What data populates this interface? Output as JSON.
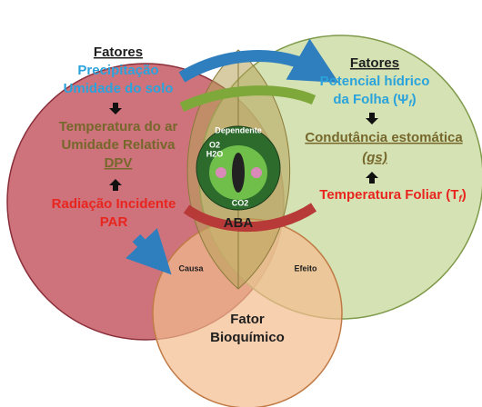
{
  "left": {
    "title": "Fatores",
    "lines": [
      "Precipitação",
      "Umidade do solo",
      "Temperatura do ar",
      "Umidade Relativa",
      "DPV",
      "Radiação Incidente",
      "PAR"
    ]
  },
  "right": {
    "title": "Fatores",
    "water_potential": "Potencial hídrico",
    "leaf": {
      "text": "da Folha (Ψ",
      "sub": "f",
      "end": ")"
    },
    "conductance": "Condutância estomática",
    "gs": "(gs)",
    "leaf_temp": {
      "text": "Temperatura Foliar (T",
      "sub": "f",
      "end": ")"
    }
  },
  "center": {
    "dependent": "Dependente",
    "aba": "ABA",
    "o2": "O2",
    "h2o": "H2O",
    "co2": "CO2",
    "cause": "Causa",
    "effect": "Efeito"
  },
  "bottom": {
    "lines": [
      "Fator",
      "Bioquímico"
    ]
  }
}
